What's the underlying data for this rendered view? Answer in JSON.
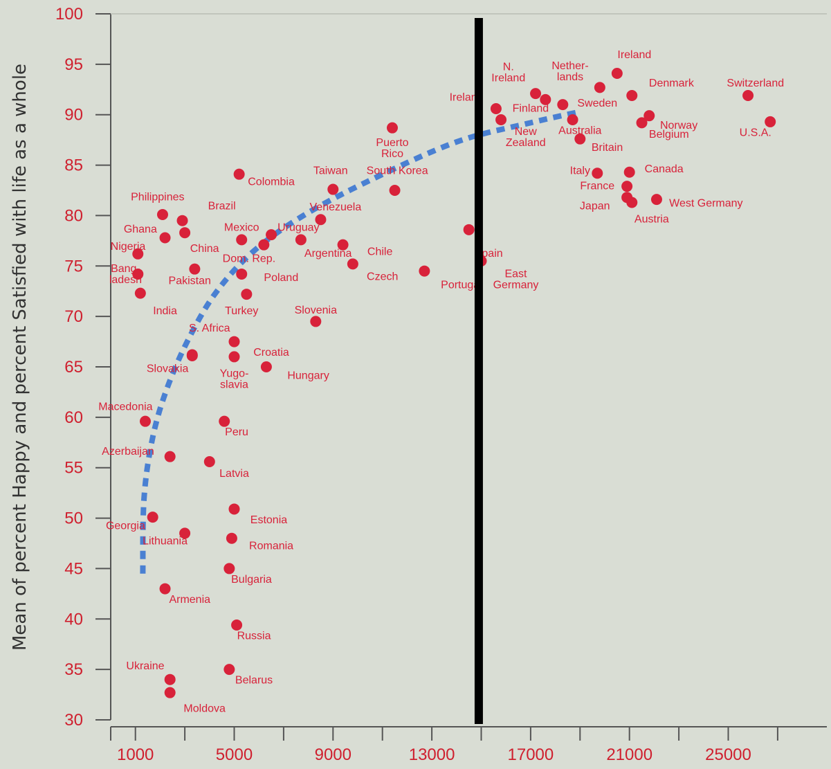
{
  "chart_data": {
    "type": "scatter",
    "title": "",
    "xlabel": "",
    "ylabel": "Mean of percent Happy and percent Satisfied with life as a whole",
    "xlim": [
      0,
      28000
    ],
    "ylim": [
      30,
      100
    ],
    "x_ticks": [
      1000,
      5000,
      9000,
      13000,
      17000,
      21000,
      25000
    ],
    "y_ticks": [
      30,
      35,
      40,
      45,
      50,
      55,
      60,
      65,
      70,
      75,
      80,
      85,
      90,
      95,
      100
    ],
    "grid": false,
    "colors": {
      "point": "#d8223a",
      "tick_text": "#cf1f2e",
      "trend": "#4a80d2",
      "vline": "#000000",
      "background": "#d9ddd4"
    },
    "reference_line": {
      "x": 14900
    },
    "trend_curve": [
      {
        "x": 1300,
        "y": 44.5
      },
      {
        "x": 1350,
        "y": 52
      },
      {
        "x": 1700,
        "y": 58
      },
      {
        "x": 2300,
        "y": 63
      },
      {
        "x": 3200,
        "y": 68
      },
      {
        "x": 4300,
        "y": 72.5
      },
      {
        "x": 5800,
        "y": 76.5
      },
      {
        "x": 7800,
        "y": 80
      },
      {
        "x": 10500,
        "y": 83.5
      },
      {
        "x": 14000,
        "y": 87.3
      },
      {
        "x": 17000,
        "y": 89.2
      },
      {
        "x": 19000,
        "y": 90.3
      }
    ],
    "points": [
      {
        "label": "Ireland",
        "x": 20500,
        "y": 94.1,
        "lx": 21200,
        "ly": 95.6
      },
      {
        "label": "Netherlands",
        "lines": [
          "Nether-",
          "lands"
        ],
        "x": 19800,
        "y": 92.7,
        "lx": 18600,
        "ly": 94.5
      },
      {
        "label": "Denmark",
        "x": 21100,
        "y": 91.9,
        "lx": 22700,
        "ly": 92.8
      },
      {
        "label": "Switzerland",
        "x": 25800,
        "y": 91.9,
        "lx": 26100,
        "ly": 92.8
      },
      {
        "label": "N. Ireland",
        "lines": [
          "N.",
          "Ireland"
        ],
        "x": 17200,
        "y": 92.1,
        "lx": 16100,
        "ly": 94.4
      },
      {
        "label": "Sweden",
        "x": 18300,
        "y": 91.0,
        "lx": 19700,
        "ly": 90.8
      },
      {
        "label": "Finland",
        "x": 17600,
        "y": 91.5,
        "lx": 17000,
        "ly": 90.3
      },
      {
        "label": "Ireland",
        "x": 15600,
        "y": 90.6,
        "lx": 14400,
        "ly": 91.4
      },
      {
        "label": "Norway",
        "x": 21800,
        "y": 89.9,
        "lx": 23000,
        "ly": 88.6
      },
      {
        "label": "Belgium",
        "x": 21500,
        "y": 89.2,
        "lx": 22600,
        "ly": 87.7
      },
      {
        "label": "U.S.A.",
        "x": 26700,
        "y": 89.3,
        "lx": 26100,
        "ly": 87.9
      },
      {
        "label": "Australia",
        "x": 18700,
        "y": 89.5,
        "lx": 19000,
        "ly": 88.1
      },
      {
        "label": "New Zealand",
        "lines": [
          "New",
          "Zealand"
        ],
        "x": 15800,
        "y": 89.5,
        "lx": 16800,
        "ly": 88.0
      },
      {
        "label": "Britain",
        "x": 19000,
        "y": 87.6,
        "lx": 20100,
        "ly": 86.4
      },
      {
        "label": "Puerto Rico",
        "lines": [
          "Puerto",
          "Rico"
        ],
        "x": 11400,
        "y": 88.7,
        "lx": 11400,
        "ly": 86.9
      },
      {
        "label": "Italy",
        "x": 19700,
        "y": 84.2,
        "lx": 19000,
        "ly": 84.1
      },
      {
        "label": "Canada",
        "x": 21000,
        "y": 84.3,
        "lx": 22400,
        "ly": 84.3
      },
      {
        "label": "France",
        "x": 20900,
        "y": 82.9,
        "lx": 19700,
        "ly": 82.6
      },
      {
        "label": "Japan",
        "x": 20900,
        "y": 81.8,
        "lx": 19600,
        "ly": 80.6
      },
      {
        "label": "West Germany",
        "x": 22100,
        "y": 81.6,
        "lx": 24100,
        "ly": 80.9
      },
      {
        "label": "Austria",
        "x": 21100,
        "y": 81.3,
        "lx": 21900,
        "ly": 79.3
      },
      {
        "label": "Colombia",
        "x": 5200,
        "y": 84.1,
        "lx": 6500,
        "ly": 83.0
      },
      {
        "label": "Taiwan",
        "x": 9000,
        "y": 82.6,
        "lx": 8900,
        "ly": 84.1
      },
      {
        "label": "South Korea",
        "x": 11500,
        "y": 82.5,
        "lx": 11600,
        "ly": 84.1
      },
      {
        "label": "Venezuela",
        "x": 8500,
        "y": 79.6,
        "lx": 9100,
        "ly": 80.5
      },
      {
        "label": "Philippines",
        "x": 2100,
        "y": 80.1,
        "lx": 1900,
        "ly": 81.5
      },
      {
        "label": "Brazil",
        "x": 2900,
        "y": 79.5,
        "lx": 4500,
        "ly": 80.6
      },
      {
        "label": "Ghana",
        "x": 2200,
        "y": 77.8,
        "lx": 1200,
        "ly": 78.3
      },
      {
        "label": "China",
        "x": 3000,
        "y": 78.3,
        "lx": 3800,
        "ly": 76.4
      },
      {
        "label": "Mexico",
        "x": 5300,
        "y": 77.6,
        "lx": 5300,
        "ly": 78.5
      },
      {
        "label": "Uruguay",
        "x": 6500,
        "y": 78.1,
        "lx": 7600,
        "ly": 78.5
      },
      {
        "label": "Argentina",
        "x": 7700,
        "y": 77.6,
        "lx": 8800,
        "ly": 75.9
      },
      {
        "label": "Chile",
        "x": 9400,
        "y": 77.1,
        "lx": 10900,
        "ly": 76.1
      },
      {
        "label": "Nigeria",
        "x": 1100,
        "y": 76.2,
        "lx": 700,
        "ly": 76.6
      },
      {
        "label": "Dom. Rep.",
        "x": 6200,
        "y": 77.1,
        "lx": 5600,
        "ly": 75.4
      },
      {
        "label": "Bangladesh",
        "lines": [
          "Bang-",
          "ladesh"
        ],
        "x": 1100,
        "y": 74.2,
        "lx": 600,
        "ly": 74.4
      },
      {
        "label": "Pakistan",
        "x": 3400,
        "y": 74.7,
        "lx": 3200,
        "ly": 73.2
      },
      {
        "label": "Poland",
        "x": 5300,
        "y": 74.2,
        "lx": 6900,
        "ly": 73.5
      },
      {
        "label": "Czech",
        "x": 9800,
        "y": 75.2,
        "lx": 11000,
        "ly": 73.6
      },
      {
        "label": "India",
        "x": 1200,
        "y": 72.3,
        "lx": 2200,
        "ly": 70.2
      },
      {
        "label": "Turkey",
        "x": 5500,
        "y": 72.2,
        "lx": 5300,
        "ly": 70.2
      },
      {
        "label": "Portugal",
        "x": 12700,
        "y": 74.5,
        "lx": 14200,
        "ly": 72.8
      },
      {
        "label": "Spain",
        "x": 14500,
        "y": 78.6,
        "lx": 15300,
        "ly": 75.9
      },
      {
        "label": "East Germany",
        "lines": [
          "East",
          "Germany"
        ],
        "x": 15000,
        "y": 75.5,
        "lx": 16400,
        "ly": 73.9
      },
      {
        "label": "Slovenia",
        "x": 8300,
        "y": 69.5,
        "lx": 8300,
        "ly": 70.3
      },
      {
        "label": "S. Africa",
        "x": 3300,
        "y": 66.1,
        "lx": 4000,
        "ly": 68.5
      },
      {
        "label": "Croatia",
        "x": 5000,
        "y": 67.5,
        "lx": 6500,
        "ly": 66.1
      },
      {
        "label": "Yugoslavia",
        "lines": [
          "Yugo-",
          "slavia"
        ],
        "x": 5000,
        "y": 66.0,
        "lx": 5000,
        "ly": 64.0
      },
      {
        "label": "Hungary",
        "x": 6300,
        "y": 65.0,
        "lx": 8000,
        "ly": 63.8
      },
      {
        "label": "Slovakia",
        "x": 3300,
        "y": 66.2,
        "lx": 2300,
        "ly": 64.5
      },
      {
        "label": "Macedonia",
        "x": 1400,
        "y": 59.6,
        "lx": 600,
        "ly": 60.7
      },
      {
        "label": "Peru",
        "x": 4600,
        "y": 59.6,
        "lx": 5100,
        "ly": 58.2
      },
      {
        "label": "Azerbaijan",
        "x": 2400,
        "y": 56.1,
        "lx": 700,
        "ly": 56.3
      },
      {
        "label": "Latvia",
        "x": 4000,
        "y": 55.6,
        "lx": 5000,
        "ly": 54.1
      },
      {
        "label": "Estonia",
        "x": 5000,
        "y": 50.9,
        "lx": 6400,
        "ly": 49.5
      },
      {
        "label": "Georgia",
        "x": 1700,
        "y": 50.1,
        "lx": 600,
        "ly": 48.9
      },
      {
        "label": "Lithuania",
        "x": 3000,
        "y": 48.5,
        "lx": 2200,
        "ly": 47.4
      },
      {
        "label": "Romania",
        "x": 4900,
        "y": 48.0,
        "lx": 6500,
        "ly": 46.9
      },
      {
        "label": "Bulgaria",
        "x": 4800,
        "y": 45.0,
        "lx": 5700,
        "ly": 43.6
      },
      {
        "label": "Armenia",
        "x": 2200,
        "y": 43.0,
        "lx": 3200,
        "ly": 41.6
      },
      {
        "label": "Russia",
        "x": 5100,
        "y": 39.4,
        "lx": 5800,
        "ly": 38.0
      },
      {
        "label": "Ukraine",
        "x": 2400,
        "y": 34.0,
        "lx": 1400,
        "ly": 35.0
      },
      {
        "label": "Belarus",
        "x": 4800,
        "y": 35.0,
        "lx": 5800,
        "ly": 33.6
      },
      {
        "label": "Moldova",
        "x": 2400,
        "y": 32.7,
        "lx": 3800,
        "ly": 30.8
      }
    ]
  }
}
